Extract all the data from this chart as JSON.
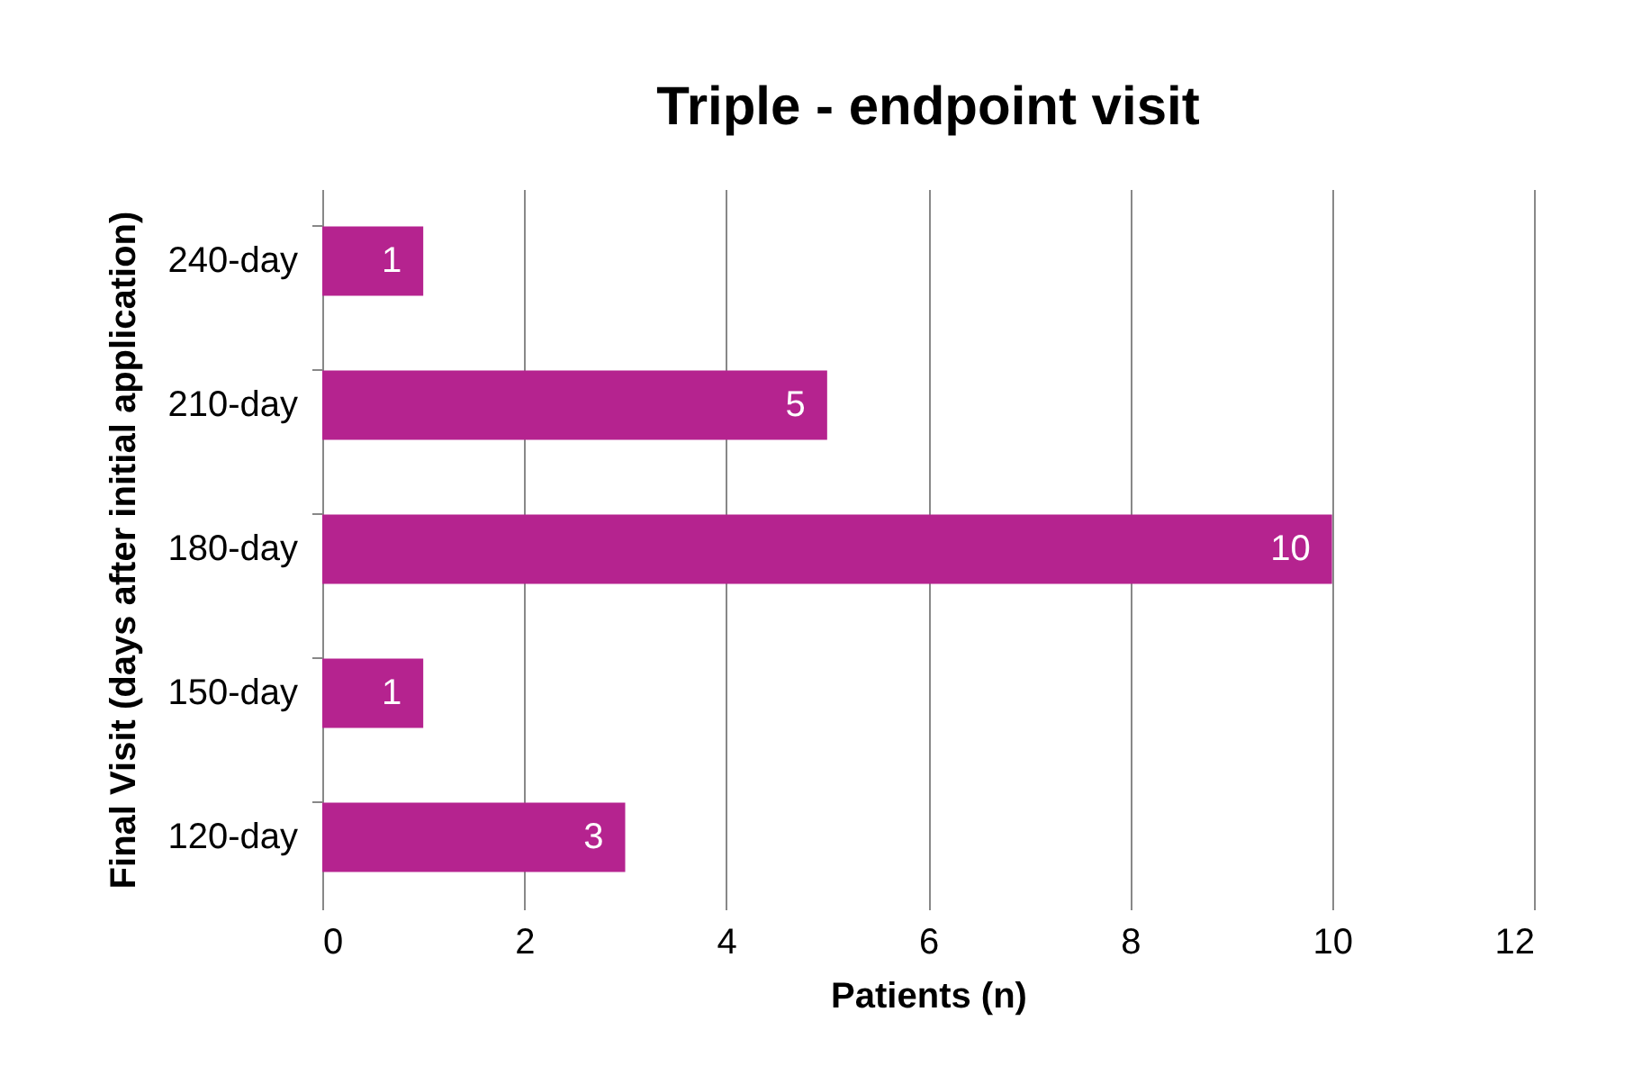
{
  "chart_data": {
    "type": "bar",
    "orientation": "horizontal",
    "title": "Triple - endpoint visit",
    "xlabel": "Patients (n)",
    "ylabel": "Final Visit (days after initial application)",
    "categories": [
      "240-day",
      "210-day",
      "180-day",
      "150-day",
      "120-day"
    ],
    "values": [
      1,
      5,
      10,
      1,
      3
    ],
    "color": "#b5238f",
    "xlim": [
      0,
      12
    ],
    "xticks": [
      0,
      2,
      4,
      6,
      8,
      10,
      12
    ],
    "grid": "x",
    "data_labels": true
  }
}
